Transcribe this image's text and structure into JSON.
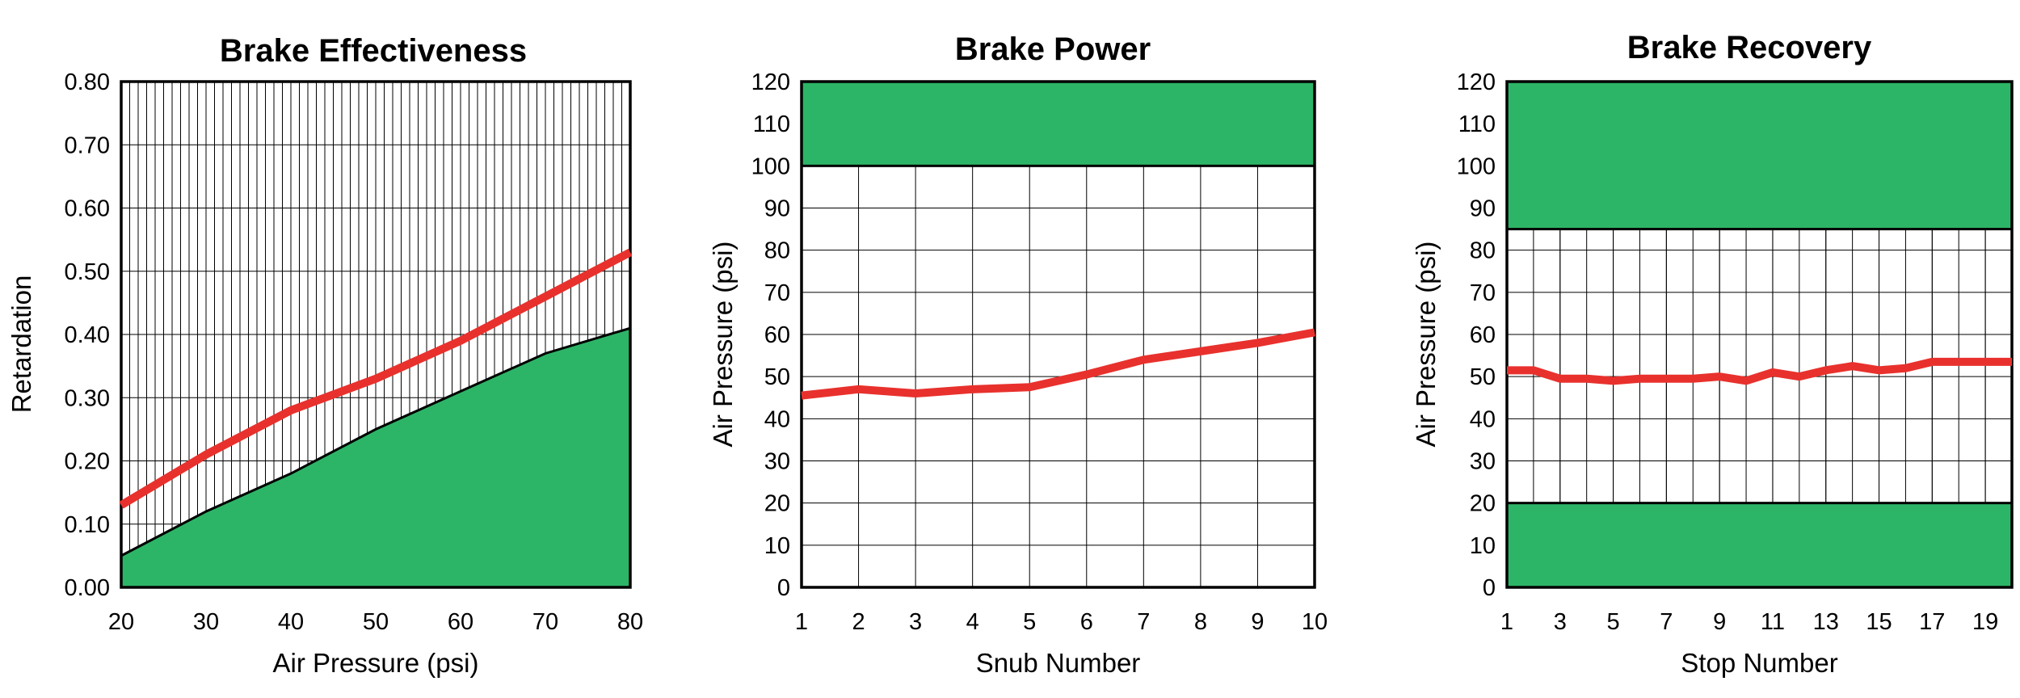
{
  "chart_data": [
    {
      "type": "area",
      "title": "Brake Effectiveness",
      "xlabel": "Air Pressure (psi)",
      "ylabel": "Retardation",
      "xlim": [
        20,
        80
      ],
      "ylim": [
        0,
        0.8
      ],
      "x_ticks": [
        "20",
        "30",
        "40",
        "50",
        "60",
        "70",
        "80"
      ],
      "y_ticks": [
        "0.00",
        "0.10",
        "0.20",
        "0.30",
        "0.40",
        "0.50",
        "0.60",
        "0.70",
        "0.80"
      ],
      "grid": true,
      "shaded_area": {
        "color": "#2db567",
        "x": [
          20,
          30,
          40,
          50,
          60,
          70,
          80
        ],
        "y": [
          0.05,
          0.12,
          0.18,
          0.25,
          0.31,
          0.37,
          0.41
        ]
      },
      "series": [
        {
          "color": "#e8312d",
          "x": [
            20,
            30,
            40,
            50,
            60,
            70,
            80
          ],
          "y": [
            0.13,
            0.21,
            0.28,
            0.33,
            0.39,
            0.46,
            0.53
          ]
        }
      ]
    },
    {
      "type": "line",
      "title": "Brake Power",
      "xlabel": "Snub Number",
      "ylabel": "Air Pressure (psi)",
      "xlim": [
        1,
        10
      ],
      "ylim": [
        0,
        120
      ],
      "x_ticks": [
        "1",
        "2",
        "3",
        "4",
        "5",
        "6",
        "7",
        "8",
        "9",
        "10"
      ],
      "y_ticks": [
        "0",
        "10",
        "20",
        "30",
        "40",
        "50",
        "60",
        "70",
        "80",
        "90",
        "100",
        "110",
        "120"
      ],
      "grid": true,
      "bands": [
        {
          "from": 100,
          "to": 120,
          "color": "#2db567"
        }
      ],
      "series": [
        {
          "color": "#e8312d",
          "x": [
            1,
            2,
            3,
            4,
            5,
            6,
            7,
            8,
            9,
            10
          ],
          "y": [
            45.5,
            47,
            46,
            47,
            47.5,
            50.5,
            54,
            56,
            58,
            60.5
          ]
        }
      ]
    },
    {
      "type": "line",
      "title": "Brake Recovery",
      "xlabel": "Stop Number",
      "ylabel": "Air Pressure (psi)",
      "xlim": [
        1,
        20
      ],
      "ylim": [
        0,
        120
      ],
      "x_ticks": [
        "1",
        "3",
        "5",
        "7",
        "9",
        "11",
        "13",
        "15",
        "17",
        "19"
      ],
      "y_ticks": [
        "0",
        "10",
        "20",
        "30",
        "40",
        "50",
        "60",
        "70",
        "80",
        "90",
        "100",
        "110",
        "120"
      ],
      "grid": true,
      "bands": [
        {
          "from": 85,
          "to": 120,
          "color": "#2db567"
        },
        {
          "from": 0,
          "to": 20,
          "color": "#2db567"
        }
      ],
      "series": [
        {
          "color": "#e8312d",
          "x": [
            1,
            2,
            3,
            4,
            5,
            6,
            7,
            8,
            9,
            10,
            11,
            12,
            13,
            14,
            15,
            16,
            17,
            18,
            19,
            20
          ],
          "y": [
            51.5,
            51.5,
            49.5,
            49.5,
            49,
            49.5,
            49.5,
            49.5,
            50,
            49,
            51,
            50,
            51.5,
            52.5,
            51.5,
            52,
            53.5,
            53.5,
            53.5,
            53.5
          ]
        }
      ]
    }
  ]
}
